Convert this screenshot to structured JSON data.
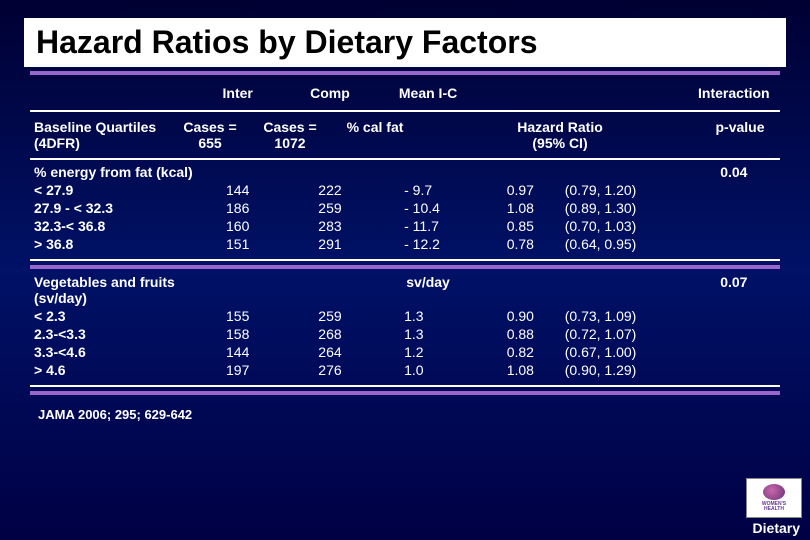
{
  "title": "Hazard Ratios by Dietary Factors",
  "colors": {
    "rule_purple": "#9966cc",
    "rule_white": "#ffffff",
    "bg_top": "#000033",
    "text": "#ffffff"
  },
  "header1": {
    "col1": "Inter",
    "col2": "Comp",
    "col3": "Mean I-C",
    "col6": "Interaction"
  },
  "header2": {
    "col0a": "Baseline Quartiles",
    "col0b": "(4DFR)",
    "col1a": "Cases =",
    "col1b": "655",
    "col2a": "Cases =",
    "col2b": "1072",
    "col3": "% cal fat",
    "col4a": "Hazard Ratio",
    "col4b": "(95% CI)",
    "col6": "p-value"
  },
  "section1": {
    "label": "% energy from fat (kcal)",
    "pvalue": "0.04",
    "unit_header": "",
    "rows": [
      {
        "q": "< 27.9",
        "inter": "144",
        "comp": "222",
        "mean": "- 9.7",
        "hr": "0.97",
        "ci": "(0.79, 1.20)"
      },
      {
        "q": "27.9 - < 32.3",
        "inter": "186",
        "comp": "259",
        "mean": "- 10.4",
        "hr": "1.08",
        "ci": "(0.89, 1.30)"
      },
      {
        "q": "32.3-< 36.8",
        "inter": "160",
        "comp": "283",
        "mean": "- 11.7",
        "hr": "0.85",
        "ci": "(0.70, 1.03)"
      },
      {
        "q": "> 36.8",
        "inter": "151",
        "comp": "291",
        "mean": "- 12.2",
        "hr": "0.78",
        "ci": "(0.64, 0.95)"
      }
    ]
  },
  "section2": {
    "label_a": "Vegetables and fruits",
    "label_b": "(sv/day)",
    "unit_header": "sv/day",
    "pvalue": "0.07",
    "rows": [
      {
        "q": "< 2.3",
        "inter": "155",
        "comp": "259",
        "mean": "1.3",
        "hr": "0.90",
        "ci": "(0.73, 1.09)"
      },
      {
        "q": "2.3-<3.3",
        "inter": "158",
        "comp": "268",
        "mean": "1.3",
        "hr": "0.88",
        "ci": "(0.72, 1.07)"
      },
      {
        "q": "3.3-<4.6",
        "inter": "144",
        "comp": "264",
        "mean": "1.2",
        "hr": "0.82",
        "ci": "(0.67, 1.00)"
      },
      {
        "q": "> 4.6",
        "inter": "197",
        "comp": "276",
        "mean": "1.0",
        "hr": "1.08",
        "ci": "(0.90, 1.29)"
      }
    ]
  },
  "citation": "JAMA 2006; 295; 629-642",
  "footer_tag": "Dietary",
  "logo_text_a": "WOMEN'S",
  "logo_text_b": "HEALTH"
}
